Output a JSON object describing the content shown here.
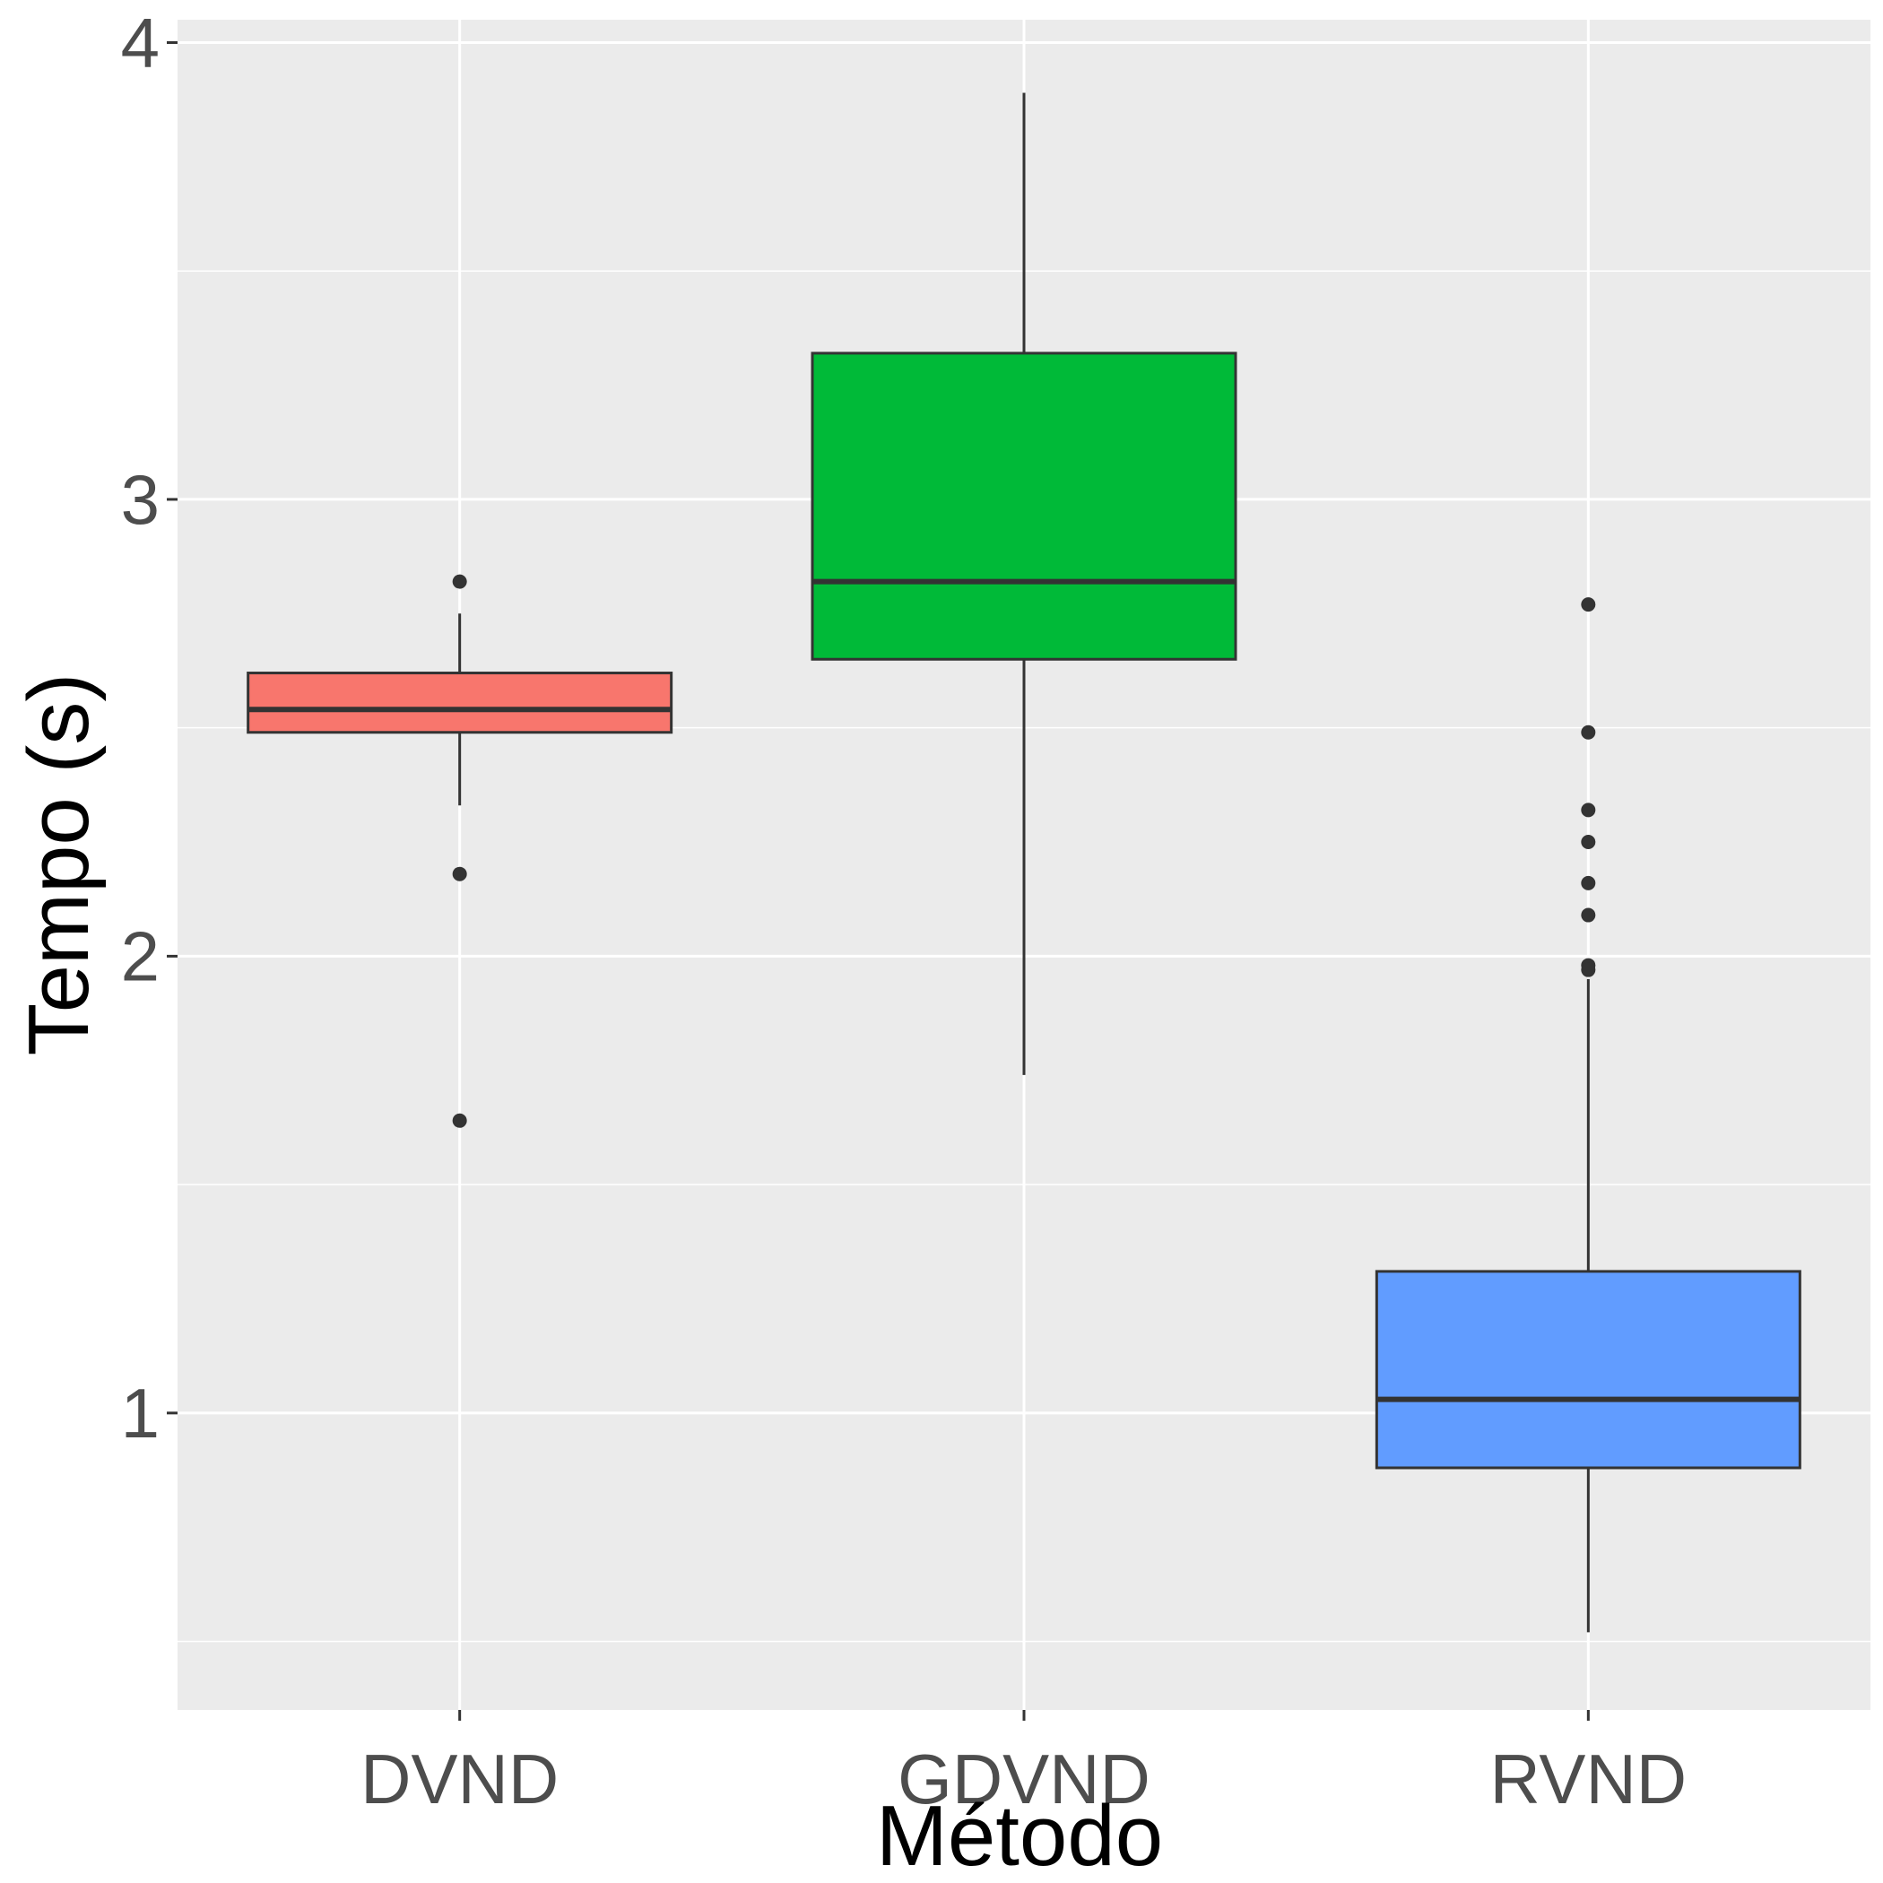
{
  "chart_data": {
    "type": "boxplot",
    "xlabel": "Método",
    "ylabel": "Tempo (s)",
    "ylim": [
      0.35,
      4.05
    ],
    "yticks": [
      1,
      2,
      3,
      4
    ],
    "grid": true,
    "background": "#ebebeb",
    "categories": [
      "DVND",
      "GDVND",
      "RVND"
    ],
    "boxes": [
      {
        "category": "DVND",
        "color": "#f8766d",
        "whisker_low": 2.33,
        "q1": 2.49,
        "median": 2.54,
        "q3": 2.62,
        "whisker_high": 2.75,
        "outliers": [
          2.82,
          2.18,
          1.64
        ]
      },
      {
        "category": "GDVND",
        "color": "#00ba38",
        "whisker_low": 1.74,
        "q1": 2.65,
        "median": 2.82,
        "q3": 3.32,
        "whisker_high": 3.89,
        "outliers": []
      },
      {
        "category": "RVND",
        "color": "#619cff",
        "whisker_low": 0.52,
        "q1": 0.88,
        "median": 1.03,
        "q3": 1.31,
        "whisker_high": 1.95,
        "outliers": [
          2.77,
          2.49,
          2.32,
          2.25,
          2.16,
          2.09,
          1.98,
          1.97
        ]
      }
    ]
  }
}
